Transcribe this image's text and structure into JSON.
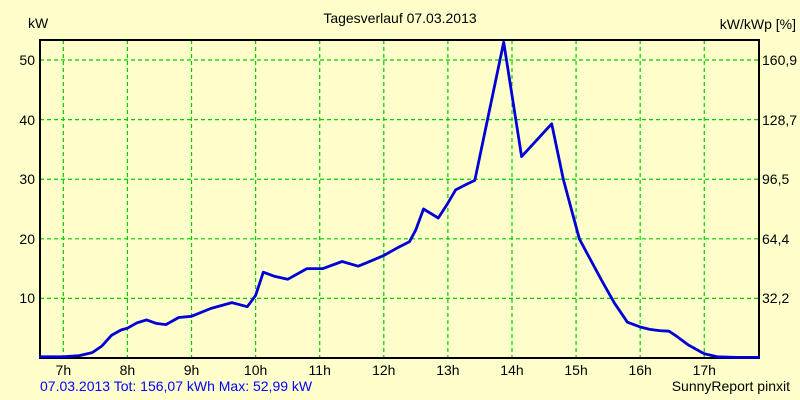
{
  "colors": {
    "background": "#FFFFCC",
    "grid": "#00CC00",
    "curve": "#0000D6",
    "border": "#000000",
    "summary_text": "#0000FF",
    "text": "#000000"
  },
  "footer": {
    "summary": "07.03.2013 Tot: 156,07 kWh Max: 52,99 kW",
    "credit": "SunnyReport pinxit"
  },
  "chart_data": {
    "type": "line",
    "title": "Tagesverlauf 07.03.2013",
    "grid": {
      "style": "dashed",
      "on": true
    },
    "xlim": [
      6.636,
      17.854
    ],
    "ylim": [
      0,
      53.36
    ],
    "left_axis": {
      "title": "kW",
      "ticks": [
        {
          "v": 50,
          "label": "50"
        },
        {
          "v": 40,
          "label": "40"
        },
        {
          "v": 30,
          "label": "30"
        },
        {
          "v": 20,
          "label": "20"
        },
        {
          "v": 10,
          "label": "10"
        }
      ]
    },
    "right_axis": {
      "title": "kW/kWp [%]",
      "ticks": [
        {
          "v": 50,
          "label": "160,9"
        },
        {
          "v": 40,
          "label": "128,7"
        },
        {
          "v": 30,
          "label": "96,5"
        },
        {
          "v": 20,
          "label": "64,4"
        },
        {
          "v": 10,
          "label": "32,2"
        }
      ]
    },
    "x_axis": {
      "ticks": [
        {
          "v": 7,
          "label": "7h"
        },
        {
          "v": 8,
          "label": "8h"
        },
        {
          "v": 9,
          "label": "9h"
        },
        {
          "v": 10,
          "label": "10h"
        },
        {
          "v": 11,
          "label": "11h"
        },
        {
          "v": 12,
          "label": "12h"
        },
        {
          "v": 13,
          "label": "13h"
        },
        {
          "v": 14,
          "label": "14h"
        },
        {
          "v": 15,
          "label": "15h"
        },
        {
          "v": 16,
          "label": "16h"
        },
        {
          "v": 17,
          "label": "17h"
        }
      ]
    },
    "series": [
      {
        "x": [
          6.64,
          7.0,
          7.25,
          7.45,
          7.6,
          7.75,
          7.9,
          8.0,
          8.15,
          8.3,
          8.45,
          8.6,
          8.8,
          9.0,
          9.3,
          9.63,
          9.87,
          10.0,
          10.12,
          10.3,
          10.5,
          10.8,
          11.05,
          11.35,
          11.6,
          11.8,
          12.0,
          12.2,
          12.4,
          12.5,
          12.62,
          12.85,
          13.0,
          13.12,
          13.3,
          13.42,
          13.87,
          14.15,
          14.62,
          14.8,
          14.95,
          15.05,
          15.2,
          15.4,
          15.6,
          15.8,
          16.0,
          16.15,
          16.3,
          16.45,
          16.55,
          16.75,
          17.0,
          17.2,
          17.5,
          17.85
        ],
        "y": [
          0.2,
          0.2,
          0.4,
          0.9,
          2.0,
          3.8,
          4.7,
          5.0,
          5.9,
          6.4,
          5.8,
          5.6,
          6.8,
          7.0,
          8.3,
          9.3,
          8.6,
          10.5,
          14.4,
          13.7,
          13.2,
          15.0,
          15.0,
          16.2,
          15.4,
          16.3,
          17.2,
          18.4,
          19.5,
          21.5,
          25.0,
          23.5,
          26.0,
          28.2,
          29.2,
          29.8,
          52.99,
          33.8,
          39.3,
          30.0,
          24.0,
          20.0,
          17.0,
          13.0,
          9.2,
          6.0,
          5.2,
          4.8,
          4.6,
          4.5,
          3.8,
          2.2,
          0.7,
          0.2,
          0.1,
          0.1
        ]
      }
    ],
    "total_kwh": "156,07",
    "max_kw": "52,99",
    "date": "07.03.2013"
  }
}
